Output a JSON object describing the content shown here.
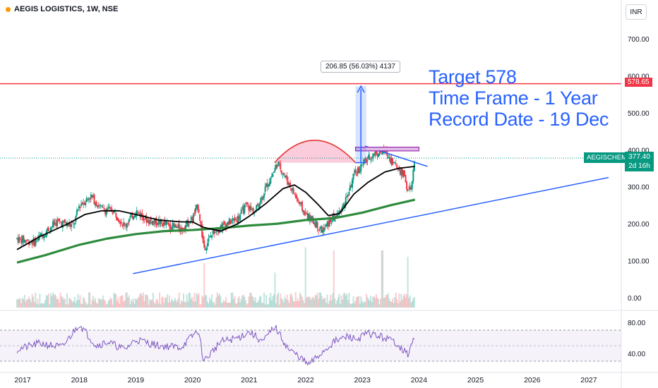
{
  "header": {
    "title": "AEGIS LOGISTICS, 1W, NSE",
    "currency_button": "INR"
  },
  "annotation": {
    "lines": [
      "Target 578",
      "Time Frame - 1 Year",
      "Record Date - 19 Dec"
    ],
    "measure_label": "206.85 (56.03%) 4137"
  },
  "price_tags": {
    "target": "578.65",
    "symbol": "AEGISCHEM",
    "last_price": "377.40",
    "countdown": "2d 16h"
  },
  "colors": {
    "up": "#089981",
    "down": "#f23645",
    "ma_short": "#000000",
    "ma_long": "#2e8b3d",
    "trendline": "#2962ff",
    "target_line": "#f23645",
    "rsi": "#7e57c2",
    "cup_fill": "#f8bbd0"
  },
  "chart_data": {
    "type": "candlestick",
    "x_ticks": [
      "2017",
      "2018",
      "2019",
      "2020",
      "2021",
      "2022",
      "2023",
      "2024",
      "2025",
      "2026",
      "2027"
    ],
    "y_ticks": [
      "700.00",
      "600.00",
      "500.00",
      "400.00",
      "300.00",
      "200.00",
      "100.00",
      "0.00"
    ],
    "ylim": [
      0,
      780
    ],
    "rsi_ticks": [
      "80.00",
      "40.00"
    ],
    "price_path": [
      [
        2016.9,
        160
      ],
      [
        2017.2,
        150
      ],
      [
        2017.6,
        205
      ],
      [
        2017.9,
        195
      ],
      [
        2018.0,
        250
      ],
      [
        2018.2,
        275
      ],
      [
        2018.4,
        240
      ],
      [
        2018.6,
        235
      ],
      [
        2018.8,
        195
      ],
      [
        2019.0,
        235
      ],
      [
        2019.2,
        210
      ],
      [
        2019.5,
        200
      ],
      [
        2019.8,
        185
      ],
      [
        2020.0,
        215
      ],
      [
        2020.1,
        250
      ],
      [
        2020.2,
        135
      ],
      [
        2020.4,
        185
      ],
      [
        2020.6,
        200
      ],
      [
        2020.8,
        215
      ],
      [
        2020.95,
        250
      ],
      [
        2021.1,
        230
      ],
      [
        2021.3,
        300
      ],
      [
        2021.45,
        345
      ],
      [
        2021.5,
        365
      ],
      [
        2021.7,
        310
      ],
      [
        2021.9,
        250
      ],
      [
        2022.0,
        225
      ],
      [
        2022.15,
        205
      ],
      [
        2022.3,
        180
      ],
      [
        2022.45,
        210
      ],
      [
        2022.6,
        230
      ],
      [
        2022.75,
        280
      ],
      [
        2022.85,
        330
      ],
      [
        2023.0,
        360
      ],
      [
        2023.2,
        390
      ],
      [
        2023.4,
        395
      ],
      [
        2023.6,
        355
      ],
      [
        2023.75,
        330
      ],
      [
        2023.8,
        285
      ],
      [
        2023.87,
        300
      ],
      [
        2023.93,
        377
      ]
    ],
    "ma_short": [
      [
        2016.9,
        130
      ],
      [
        2017.3,
        165
      ],
      [
        2017.8,
        200
      ],
      [
        2018.1,
        225
      ],
      [
        2018.4,
        235
      ],
      [
        2018.7,
        235
      ],
      [
        2019.0,
        225
      ],
      [
        2019.4,
        210
      ],
      [
        2019.8,
        205
      ],
      [
        2020.0,
        205
      ],
      [
        2020.2,
        190
      ],
      [
        2020.5,
        180
      ],
      [
        2020.8,
        200
      ],
      [
        2021.0,
        220
      ],
      [
        2021.3,
        255
      ],
      [
        2021.6,
        295
      ],
      [
        2021.8,
        305
      ],
      [
        2022.0,
        285
      ],
      [
        2022.2,
        255
      ],
      [
        2022.4,
        222
      ],
      [
        2022.6,
        228
      ],
      [
        2022.85,
        280
      ],
      [
        2023.1,
        312
      ],
      [
        2023.4,
        340
      ],
      [
        2023.65,
        350
      ],
      [
        2023.93,
        355
      ]
    ],
    "ma_long": [
      [
        2016.9,
        95
      ],
      [
        2017.4,
        115
      ],
      [
        2018.0,
        143
      ],
      [
        2018.5,
        160
      ],
      [
        2019.0,
        172
      ],
      [
        2019.5,
        180
      ],
      [
        2020.0,
        183
      ],
      [
        2020.5,
        188
      ],
      [
        2021.0,
        195
      ],
      [
        2021.5,
        200
      ],
      [
        2022.0,
        210
      ],
      [
        2022.5,
        215
      ],
      [
        2023.0,
        230
      ],
      [
        2023.5,
        250
      ],
      [
        2023.93,
        265
      ]
    ],
    "support_trendline": [
      [
        2018.95,
        65
      ],
      [
        2027.35,
        325
      ]
    ],
    "resistance_trendline": [
      [
        2023.05,
        410
      ],
      [
        2024.15,
        355
      ]
    ],
    "cup": {
      "start": [
        2021.45,
        365
      ],
      "bottom": [
        2022.15,
        162
      ],
      "end": [
        2022.88,
        365
      ]
    },
    "resistance_box": [
      2022.88,
      2024.0,
      397,
      407
    ],
    "target_line": 578.65,
    "last_price": 377.4,
    "projection": {
      "x": 2022.88,
      "from": 365,
      "to": 572
    },
    "volume_spikes": [
      [
        2022.0,
        0.95
      ],
      [
        2022.5,
        0.9
      ],
      [
        2023.35,
        0.9
      ],
      [
        2023.8,
        0.8
      ],
      [
        2020.2,
        0.7
      ],
      [
        2021.45,
        0.55
      ]
    ],
    "rsi_path": [
      [
        2016.9,
        45
      ],
      [
        2017.3,
        53
      ],
      [
        2017.7,
        48
      ],
      [
        2018.0,
        78
      ],
      [
        2018.3,
        50
      ],
      [
        2018.5,
        55
      ],
      [
        2018.8,
        45
      ],
      [
        2019.0,
        58
      ],
      [
        2019.4,
        50
      ],
      [
        2019.8,
        48
      ],
      [
        2020.1,
        70
      ],
      [
        2020.2,
        30
      ],
      [
        2020.5,
        55
      ],
      [
        2020.8,
        60
      ],
      [
        2021.0,
        68
      ],
      [
        2021.25,
        55
      ],
      [
        2021.45,
        75
      ],
      [
        2021.7,
        45
      ],
      [
        2021.9,
        35
      ],
      [
        2022.05,
        25
      ],
      [
        2022.3,
        42
      ],
      [
        2022.5,
        55
      ],
      [
        2022.75,
        62
      ],
      [
        2022.9,
        58
      ],
      [
        2023.1,
        66
      ],
      [
        2023.4,
        60
      ],
      [
        2023.6,
        54
      ],
      [
        2023.8,
        38
      ],
      [
        2023.93,
        62
      ]
    ],
    "rsi_range": [
      0,
      100
    ],
    "rsi_band": [
      30,
      70
    ]
  }
}
